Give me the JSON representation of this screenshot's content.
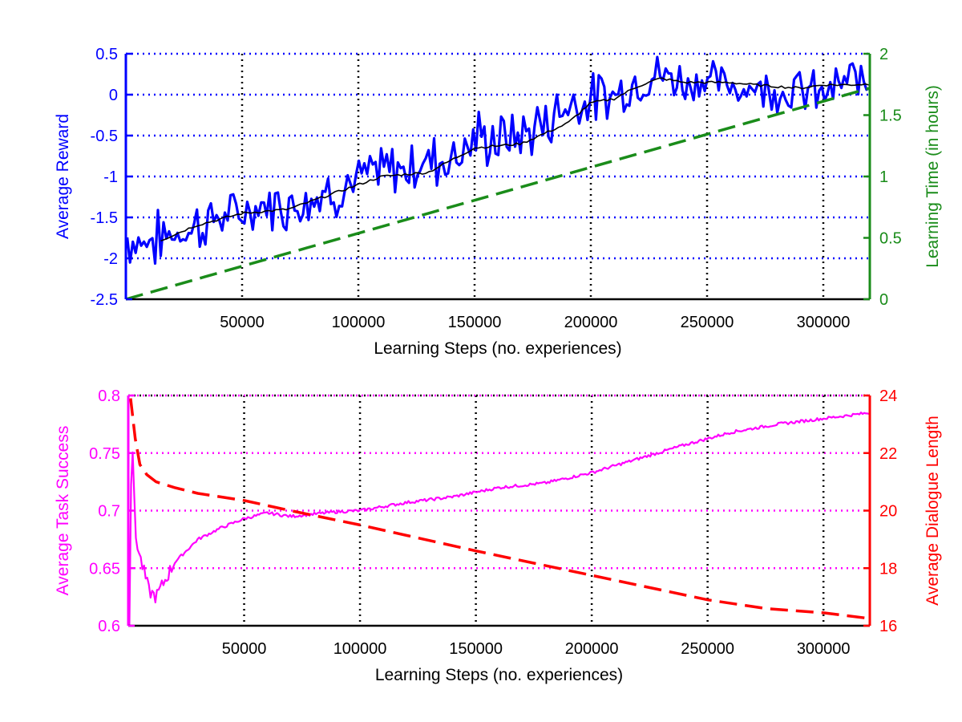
{
  "chart_data": [
    {
      "type": "line",
      "xlabel": "Learning Steps (no. experiences)",
      "ylabel_left": "Average Reward",
      "ylabel_right": "Learning Time (in hours)",
      "xlim": [
        0,
        320000
      ],
      "ylim_left": [
        -2.5,
        0.5
      ],
      "ylim_right": [
        0,
        2
      ],
      "xticks": [
        50000,
        100000,
        150000,
        200000,
        250000,
        300000
      ],
      "yticks_left": [
        -2.5,
        -2,
        -1.5,
        -1,
        -0.5,
        0,
        0.5
      ],
      "yticks_right": [
        0,
        0.5,
        1,
        1.5,
        2
      ],
      "grid": true,
      "colors": {
        "reward": "#0000ff",
        "smoothed": "#000000",
        "time": "#1a8c1a",
        "gridX": "#000000",
        "gridY": "#0000ff"
      },
      "series": [
        {
          "key": "reward",
          "axis": "left",
          "style": "band",
          "x": [
            0,
            10000,
            20000,
            30000,
            40000,
            50000,
            60000,
            70000,
            80000,
            90000,
            100000,
            110000,
            120000,
            130000,
            140000,
            150000,
            160000,
            170000,
            180000,
            190000,
            200000,
            210000,
            220000,
            230000,
            240000,
            250000,
            260000,
            270000,
            280000,
            290000,
            300000,
            310000,
            320000
          ],
          "values": [
            -1.75,
            -1.8,
            -1.7,
            -1.6,
            -1.5,
            -1.45,
            -1.35,
            -1.35,
            -1.25,
            -1.15,
            -1.05,
            -0.95,
            -0.9,
            -0.8,
            -0.75,
            -0.55,
            -0.55,
            -0.5,
            -0.35,
            -0.1,
            -0.05,
            0.0,
            0.15,
            0.25,
            0.15,
            0.2,
            0.1,
            0.1,
            0.05,
            0.05,
            0.0,
            0.15,
            0.2
          ],
          "spread": [
            0.3,
            0.3,
            0.25,
            0.3,
            0.25,
            0.2,
            0.25,
            0.25,
            0.25,
            0.3,
            0.25,
            0.3,
            0.25,
            0.3,
            0.3,
            0.3,
            0.3,
            0.25,
            0.3,
            0.3,
            0.25,
            0.25,
            0.2,
            0.25,
            0.25,
            0.2,
            0.2,
            0.2,
            0.2,
            0.25,
            0.2,
            0.25,
            0.25
          ]
        },
        {
          "key": "smoothed",
          "axis": "left",
          "style": "solid",
          "x": [
            15000,
            30000,
            50000,
            70000,
            90000,
            110000,
            130000,
            150000,
            170000,
            190000,
            200000,
            210000,
            220000,
            230000,
            240000,
            250000,
            260000,
            270000,
            280000,
            290000,
            300000,
            310000,
            320000
          ],
          "values": [
            -1.78,
            -1.6,
            -1.45,
            -1.4,
            -1.2,
            -1.0,
            -0.95,
            -0.65,
            -0.6,
            -0.35,
            -0.1,
            -0.05,
            0.1,
            0.2,
            0.15,
            0.15,
            0.15,
            0.12,
            0.1,
            0.08,
            0.12,
            0.12,
            0.13
          ]
        },
        {
          "key": "time",
          "axis": "right",
          "style": "dashed",
          "x": [
            0,
            320000
          ],
          "values": [
            0,
            1.72
          ]
        }
      ]
    },
    {
      "type": "line",
      "xlabel": "Learning Steps (no. experiences)",
      "ylabel_left": "Average Task Success",
      "ylabel_right": "Average Dialogue Length",
      "xlim": [
        0,
        320000
      ],
      "ylim_left": [
        0.6,
        0.8
      ],
      "ylim_right": [
        16,
        24
      ],
      "xticks": [
        50000,
        100000,
        150000,
        200000,
        250000,
        300000
      ],
      "yticks_left": [
        0.6,
        0.65,
        0.7,
        0.75,
        0.8
      ],
      "yticks_right": [
        16,
        18,
        20,
        22,
        24
      ],
      "grid": true,
      "colors": {
        "success": "#ff00ff",
        "length": "#ff0000",
        "gridX": "#000000",
        "gridY": "#ff00ff"
      },
      "series": [
        {
          "key": "success",
          "axis": "left",
          "style": "solid",
          "x": [
            500,
            1500,
            3000,
            5000,
            7000,
            9000,
            12000,
            16000,
            20000,
            25000,
            30000,
            40000,
            50000,
            60000,
            70000,
            80000,
            90000,
            100000,
            120000,
            140000,
            150000,
            160000,
            180000,
            200000,
            220000,
            240000,
            260000,
            280000,
            300000,
            320000
          ],
          "values": [
            0.6,
            0.78,
            0.68,
            0.66,
            0.645,
            0.63,
            0.625,
            0.64,
            0.655,
            0.665,
            0.675,
            0.685,
            0.693,
            0.698,
            0.695,
            0.697,
            0.699,
            0.7,
            0.707,
            0.712,
            0.716,
            0.72,
            0.724,
            0.733,
            0.745,
            0.757,
            0.768,
            0.775,
            0.78,
            0.785
          ]
        },
        {
          "key": "length",
          "axis": "right",
          "style": "dashed",
          "x": [
            1000,
            3000,
            5000,
            8000,
            12000,
            20000,
            30000,
            50000,
            70000,
            100000,
            150000,
            200000,
            250000,
            275000,
            300000,
            320000
          ],
          "values": [
            23.9,
            22.5,
            21.6,
            21.25,
            21.0,
            20.8,
            20.6,
            20.35,
            20.0,
            19.5,
            18.6,
            17.75,
            16.9,
            16.6,
            16.45,
            16.25
          ]
        }
      ]
    }
  ]
}
